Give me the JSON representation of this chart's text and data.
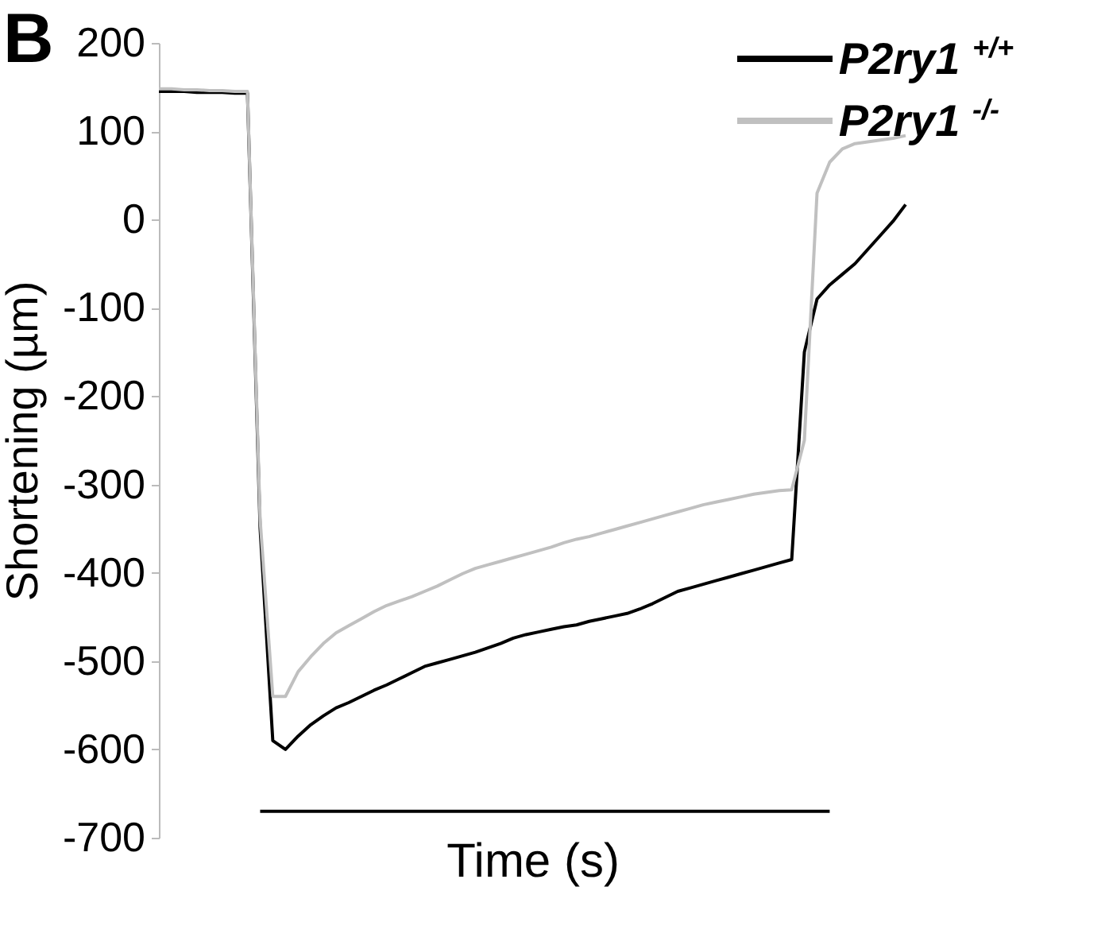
{
  "chart_data": {
    "type": "line",
    "ylabel": "Shortening (µm)",
    "xlabel": "Time (s)",
    "annotations": [
      "B"
    ],
    "categories": [
      null,
      null,
      null,
      null,
      null,
      null,
      null,
      null,
      null,
      null,
      null,
      null,
      null,
      null,
      null,
      null,
      null,
      null,
      null,
      null,
      null,
      null,
      null,
      null,
      null,
      null,
      null,
      null,
      null,
      null,
      null,
      null,
      null,
      null,
      null,
      null,
      null,
      null,
      null,
      null,
      null,
      null,
      null,
      null,
      null,
      null,
      null,
      null,
      null,
      null,
      null,
      null,
      null,
      null,
      null,
      null,
      null,
      null,
      null,
      null
    ],
    "ylim": [
      -700,
      200
    ],
    "yticks": [
      -700,
      -600,
      -500,
      -400,
      -300,
      -200,
      -100,
      0,
      100,
      200
    ],
    "tick_labels": "y",
    "grid": false,
    "legend": "top right",
    "marker": "none",
    "line_style": "solid",
    "series": [
      {
        "name": "P2ry1 $^{+/+}$",
        "color": "#000000",
        "values": [
          145,
          145,
          145,
          144,
          144,
          144,
          143,
          143,
          -350,
          -590,
          -600,
          -585,
          -572,
          -562,
          -553,
          -547,
          -540,
          -533,
          -527,
          -520,
          -513,
          -506,
          -502,
          -498,
          -494,
          -490,
          -485,
          -480,
          -474,
          -470,
          -467,
          -464,
          -461,
          -459,
          -455,
          -452,
          -449,
          -446,
          -441,
          -435,
          -428,
          -421,
          -417,
          -413,
          -409,
          -405,
          -401,
          -397,
          -393,
          -389,
          -385,
          -150,
          -90,
          -74,
          -62,
          -50,
          -34,
          -18,
          -2,
          17
        ]
      },
      {
        "name": "P2ry1 $^{-/-}$",
        "color": "#c0c0c0",
        "values": [
          148,
          148,
          147,
          147,
          146,
          146,
          145,
          145,
          -340,
          -540,
          -540,
          -512,
          -495,
          -480,
          -468,
          -460,
          -452,
          -444,
          -437,
          -432,
          -427,
          -421,
          -415,
          -408,
          -401,
          -395,
          -391,
          -387,
          -383,
          -379,
          -375,
          -371,
          -366,
          -362,
          -359,
          -355,
          -351,
          -347,
          -343,
          -339,
          -335,
          -331,
          -327,
          -323,
          -320,
          -317,
          -314,
          -311,
          -309,
          -307,
          -306,
          -250,
          30,
          65,
          80,
          86,
          88,
          90,
          92,
          95
        ]
      },
      {
        "color": "#000000",
        "values": [
          null,
          null,
          null,
          null,
          null,
          null,
          null,
          null,
          -670,
          -670,
          -670,
          -670,
          -670,
          -670,
          -670,
          -670,
          -670,
          -670,
          -670,
          -670,
          -670,
          -670,
          -670,
          -670,
          -670,
          -670,
          -670,
          -670,
          -670,
          -670,
          -670,
          -670,
          -670,
          -670,
          -670,
          -670,
          -670,
          -670,
          -670,
          -670,
          -670,
          -670,
          -670,
          -670,
          -670,
          -670,
          -670,
          -670,
          -670,
          -670,
          -670,
          -670,
          -670,
          -670,
          null,
          null,
          null,
          null,
          null,
          null
        ]
      }
    ]
  }
}
